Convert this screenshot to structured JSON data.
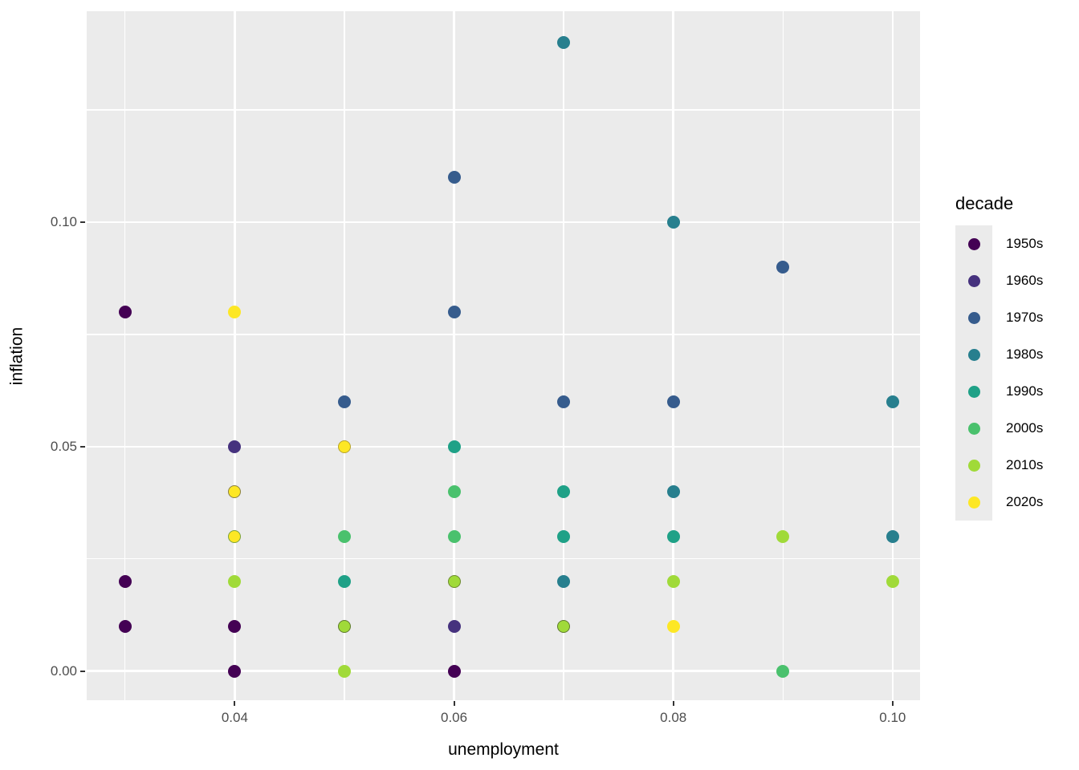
{
  "chart_data": {
    "type": "scatter",
    "title": "",
    "xlabel": "unemployment",
    "ylabel": "inflation",
    "legend_title": "decade",
    "legend_position": "right",
    "grid": true,
    "panel_background": "#EBEBEB",
    "xlim": [
      0.0265,
      0.1025
    ],
    "ylim": [
      -0.0065,
      0.147
    ],
    "x_ticks": [
      0.04,
      0.06,
      0.08,
      0.1
    ],
    "x_tick_labels": [
      "0.04",
      "0.06",
      "0.08",
      "0.10"
    ],
    "x_minor_gridlines": [
      0.03,
      0.05,
      0.07,
      0.09
    ],
    "y_ticks": [
      0.0,
      0.05,
      0.1
    ],
    "y_tick_labels": [
      "0.00",
      "0.05",
      "0.10"
    ],
    "y_minor_gridlines": [
      0.025,
      0.075,
      0.125
    ],
    "series": [
      {
        "name": "1950s",
        "color": "#440154",
        "points": [
          [
            0.03,
            0.08
          ],
          [
            0.03,
            0.02
          ],
          [
            0.03,
            0.01
          ],
          [
            0.04,
            0.01
          ],
          [
            0.04,
            0.0
          ],
          [
            0.06,
            0.0
          ]
        ]
      },
      {
        "name": "1960s",
        "color": "#46327E",
        "points": [
          [
            0.04,
            0.05
          ],
          [
            0.06,
            0.01
          ]
        ]
      },
      {
        "name": "1970s",
        "color": "#365C8D",
        "points": [
          [
            0.06,
            0.11
          ],
          [
            0.09,
            0.09
          ],
          [
            0.06,
            0.08
          ],
          [
            0.05,
            0.06
          ],
          [
            0.07,
            0.06
          ],
          [
            0.08,
            0.06
          ]
        ]
      },
      {
        "name": "1980s",
        "color": "#277F8E",
        "points": [
          [
            0.07,
            0.14
          ],
          [
            0.08,
            0.1
          ],
          [
            0.1,
            0.06
          ],
          [
            0.08,
            0.04
          ],
          [
            0.1,
            0.03
          ],
          [
            0.07,
            0.02
          ]
        ]
      },
      {
        "name": "1990s",
        "color": "#1FA187",
        "points": [
          [
            0.06,
            0.05
          ],
          [
            0.07,
            0.04
          ],
          [
            0.07,
            0.03
          ],
          [
            0.08,
            0.03
          ],
          [
            0.05,
            0.02
          ]
        ]
      },
      {
        "name": "2000s",
        "color": "#4AC16D",
        "points": [
          [
            0.06,
            0.04
          ],
          [
            0.05,
            0.03
          ],
          [
            0.06,
            0.03
          ],
          [
            0.09,
            0.0
          ]
        ]
      },
      {
        "name": "2010s",
        "color": "#A0DA39",
        "points": [
          [
            0.04,
            0.02
          ],
          [
            0.06,
            0.02,
            "#6d8a30"
          ],
          [
            0.08,
            0.02
          ],
          [
            0.1,
            0.02
          ],
          [
            0.09,
            0.03
          ],
          [
            0.05,
            0.01,
            "#5e7a2e"
          ],
          [
            0.07,
            0.01,
            "#5e7a2e"
          ],
          [
            0.05,
            0.0
          ]
        ]
      },
      {
        "name": "2020s",
        "color": "#FDE725",
        "points": [
          [
            0.04,
            0.08
          ],
          [
            0.05,
            0.05,
            "#b5a32e"
          ],
          [
            0.04,
            0.04,
            "#8a8040"
          ],
          [
            0.04,
            0.03,
            "#7aa23c"
          ],
          [
            0.08,
            0.01
          ]
        ]
      }
    ]
  },
  "colors": {
    "page_bg": "#FFFFFF",
    "panel_bg": "#EBEBEB",
    "gridline": "#FFFFFF",
    "tick_mark": "#333333",
    "tick_label": "#4D4D4D",
    "axis_title": "#000000",
    "legend_text": "#000000",
    "legend_key_bg": "#EBEBEB"
  }
}
